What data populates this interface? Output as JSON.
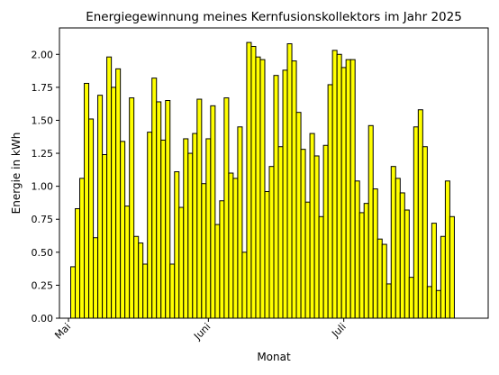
{
  "chart_data": {
    "type": "bar",
    "title": "Energiegewinnung meines Kernfusionskollektors im Jahr 2025",
    "xlabel": "Monat",
    "ylabel": "Energie in kWh",
    "x_ticks": [
      {
        "label": "Mai",
        "day_index": 0
      },
      {
        "label": "Juni",
        "day_index": 31
      },
      {
        "label": "Juli",
        "day_index": 61
      }
    ],
    "x_range_days": [
      -2,
      93
    ],
    "first_bar_day_index": 1,
    "y_ticks": [
      "0.00",
      "0.25",
      "0.50",
      "0.75",
      "1.00",
      "1.25",
      "1.50",
      "1.75",
      "2.00"
    ],
    "ylim": [
      0,
      2.2
    ],
    "grid": false,
    "bar_color": "#ffff00",
    "edge_color": "#000000",
    "values": [
      0.39,
      0.83,
      1.06,
      1.78,
      1.51,
      0.61,
      1.69,
      1.24,
      1.98,
      1.75,
      1.89,
      1.34,
      0.85,
      1.67,
      0.62,
      0.57,
      0.41,
      1.41,
      1.82,
      1.64,
      1.35,
      1.65,
      0.41,
      1.11,
      0.84,
      1.36,
      1.25,
      1.4,
      1.66,
      1.02,
      1.36,
      1.61,
      0.71,
      0.89,
      1.67,
      1.1,
      1.06,
      1.45,
      0.5,
      2.09,
      2.06,
      1.98,
      1.96,
      0.96,
      1.15,
      1.84,
      1.3,
      1.88,
      2.08,
      1.95,
      1.56,
      1.28,
      0.88,
      1.4,
      1.23,
      0.77,
      1.31,
      1.77,
      2.03,
      2.0,
      1.9,
      1.96,
      1.96,
      1.04,
      0.8,
      0.87,
      1.46,
      0.98,
      0.6,
      0.56,
      0.26,
      1.15,
      1.06,
      0.95,
      0.82,
      0.31,
      1.45,
      1.58,
      1.3,
      0.24,
      0.72,
      0.21,
      0.62,
      1.04,
      0.77
    ]
  }
}
